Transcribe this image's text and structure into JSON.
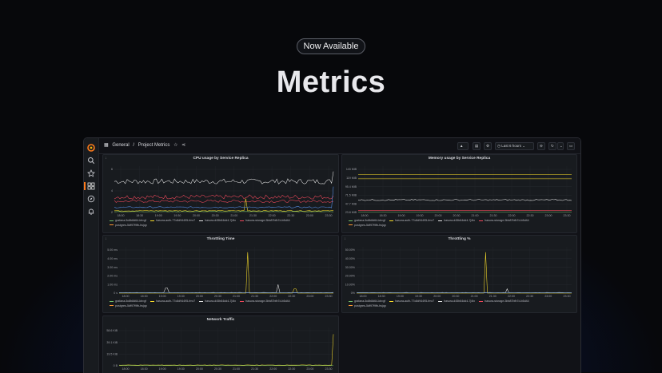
{
  "hero": {
    "badge": "Now Available",
    "headline": "Metrics"
  },
  "colors": {
    "green": "#73bf69",
    "yellow": "#fade2a",
    "blue": "#5794f2",
    "red": "#f2495c",
    "white": "#e6e6e6",
    "orange": "#ff9830"
  },
  "sidebar": {
    "icons": [
      "grafana-logo-icon",
      "search-icon",
      "star-icon",
      "dashboards-icon",
      "explore-icon",
      "alerting-icon"
    ]
  },
  "topbar": {
    "breadcrumb": [
      "General",
      "/",
      "Project Metrics"
    ],
    "time_range": "Last 6 hours"
  },
  "x_ticks": [
    "18:00",
    "18:30",
    "19:00",
    "19:30",
    "20:00",
    "20:30",
    "21:00",
    "21:30",
    "22:00",
    "22:30",
    "23:00",
    "23:30"
  ],
  "legend_items": [
    {
      "label": "grafana-5c8b8d64-kbvgf",
      "color": "#73bf69"
    },
    {
      "label": "hasura-auth-77c8d94495-fmx7",
      "color": "#fade2a"
    },
    {
      "label": "hasura-d45b64dd4-7j4tx",
      "color": "#e6e6e6"
    },
    {
      "label": "hasura-storage-5bb87bfb7d-b5d44",
      "color": "#f2495c"
    },
    {
      "label": "postgres-5df97f9fb-hsjqp",
      "color": "#ff9830"
    }
  ],
  "panels": {
    "cpu": {
      "title": "CPU usage by Service Replica",
      "y_ticks": [
        "2",
        "4",
        "6"
      ]
    },
    "memory": {
      "title": "Memory usage by Service Replica",
      "y_ticks": [
        "23.8 MiB",
        "47.7 MiB",
        "71.5 MiB",
        "95.4 MiB",
        "119 MiB",
        "143 MiB"
      ]
    },
    "throttling_time": {
      "title": "Throttling Time",
      "y_ticks": [
        "0 s",
        "1.00 ms",
        "2.00 ms",
        "3.00 ms",
        "4.00 ms",
        "5.00 ms"
      ]
    },
    "throttling_pct": {
      "title": "Throttling %",
      "y_ticks": [
        "0%",
        "10.00%",
        "20.00%",
        "30.00%",
        "40.00%",
        "50.00%"
      ]
    },
    "network": {
      "title": "Network Traffic",
      "y_ticks": [
        "0 B",
        "19.5 KiB",
        "39.1 KiB",
        "58.6 KiB"
      ]
    }
  }
}
